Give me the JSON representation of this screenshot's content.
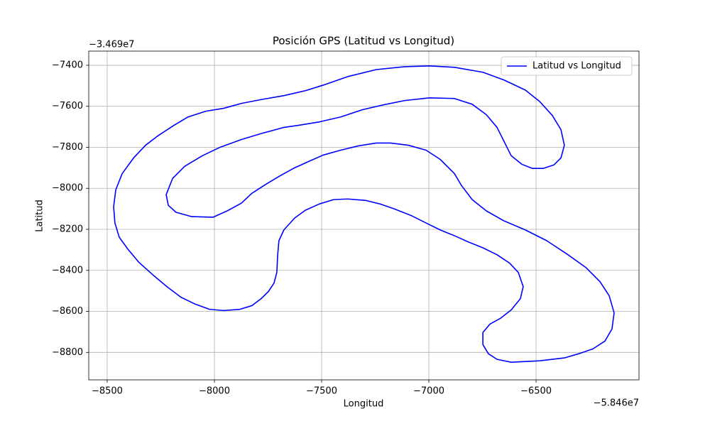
{
  "chart_data": {
    "type": "line",
    "title": "Posición GPS (Latitud vs Longitud)",
    "x_label": "Longitud",
    "y_label": "Latitud",
    "x_offset": "−5.846e7",
    "y_offset": "−3.469e7",
    "legend": "upper right",
    "grid": true,
    "xlim": [
      -8586,
      -6020
    ],
    "ylim": [
      -8934,
      -7331
    ],
    "xticks": [
      {
        "value": -8500,
        "label": "−8500"
      },
      {
        "value": -8000,
        "label": "−8000"
      },
      {
        "value": -7500,
        "label": "−7500"
      },
      {
        "value": -7000,
        "label": "−7000"
      },
      {
        "value": -6500,
        "label": "−6500"
      }
    ],
    "yticks": [
      {
        "value": -8800,
        "label": "−8800"
      },
      {
        "value": -8600,
        "label": "−8600"
      },
      {
        "value": -8400,
        "label": "−8400"
      },
      {
        "value": -8200,
        "label": "−8200"
      },
      {
        "value": -8000,
        "label": "−8000"
      },
      {
        "value": -7800,
        "label": "−7800"
      },
      {
        "value": -7600,
        "label": "−7600"
      },
      {
        "value": -7400,
        "label": "−7400"
      }
    ],
    "x": [
      -7957,
      -7874,
      -7775,
      -7676,
      -7576,
      -7493,
      -7378,
      -7245,
      -7113,
      -6997,
      -6881,
      -6748,
      -6649,
      -6550,
      -6484,
      -6424,
      -6384,
      -6368,
      -6384,
      -6417,
      -6467,
      -6517,
      -6566,
      -6616,
      -6649,
      -6682,
      -6732,
      -6798,
      -6881,
      -6997,
      -7113,
      -7212,
      -7311,
      -7411,
      -7510,
      -7609,
      -7676,
      -7775,
      -7874,
      -7974,
      -8056,
      -8139,
      -8195,
      -8225,
      -8215,
      -8179,
      -8106,
      -8007,
      -7940,
      -7874,
      -7825,
      -7758,
      -7692,
      -7626,
      -7560,
      -7493,
      -7411,
      -7328,
      -7245,
      -7179,
      -7096,
      -7013,
      -6947,
      -6881,
      -6848,
      -6798,
      -6732,
      -6649,
      -6550,
      -6451,
      -6351,
      -6268,
      -6202,
      -6159,
      -6136,
      -6146,
      -6179,
      -6235,
      -6302,
      -6368,
      -6484,
      -6616,
      -6682,
      -6722,
      -6748,
      -6748,
      -6715,
      -6666,
      -6616,
      -6573,
      -6560,
      -6583,
      -6623,
      -6682,
      -6748,
      -6815,
      -6881,
      -6947,
      -7013,
      -7080,
      -7162,
      -7229,
      -7295,
      -7378,
      -7444,
      -7510,
      -7576,
      -7626,
      -7676,
      -7699,
      -7705,
      -7709,
      -7722,
      -7748,
      -7782,
      -7825,
      -7881,
      -7957,
      -8023,
      -8089,
      -8156,
      -8222,
      -8288,
      -8354,
      -8404,
      -8444,
      -8464,
      -8470,
      -8460,
      -8430,
      -8377,
      -8321,
      -8265,
      -8189,
      -8123,
      -8040,
      -7957
    ],
    "series": [
      {
        "name": "Latitud vs Longitud",
        "color": "#0000ff",
        "values": [
          -7610,
          -7586,
          -7566,
          -7548,
          -7524,
          -7497,
          -7455,
          -7421,
          -7407,
          -7403,
          -7410,
          -7434,
          -7472,
          -7521,
          -7576,
          -7645,
          -7714,
          -7790,
          -7852,
          -7886,
          -7903,
          -7903,
          -7883,
          -7841,
          -7772,
          -7703,
          -7641,
          -7590,
          -7562,
          -7559,
          -7572,
          -7593,
          -7617,
          -7652,
          -7676,
          -7693,
          -7703,
          -7731,
          -7762,
          -7800,
          -7841,
          -7893,
          -7952,
          -8031,
          -8083,
          -8117,
          -8138,
          -8141,
          -8110,
          -8072,
          -8024,
          -7979,
          -7938,
          -7900,
          -7869,
          -7838,
          -7814,
          -7793,
          -7779,
          -7779,
          -7790,
          -7814,
          -7859,
          -7928,
          -7986,
          -8055,
          -8110,
          -8159,
          -8203,
          -8255,
          -8324,
          -8386,
          -8455,
          -8524,
          -8607,
          -8686,
          -8745,
          -8783,
          -8807,
          -8827,
          -8841,
          -8848,
          -8834,
          -8807,
          -8762,
          -8703,
          -8662,
          -8634,
          -8593,
          -8538,
          -8479,
          -8410,
          -8365,
          -8324,
          -8290,
          -8262,
          -8231,
          -8203,
          -8169,
          -8134,
          -8100,
          -8076,
          -8059,
          -8052,
          -8055,
          -8076,
          -8107,
          -8145,
          -8203,
          -8255,
          -8324,
          -8410,
          -8462,
          -8503,
          -8538,
          -8572,
          -8590,
          -8596,
          -8590,
          -8565,
          -8531,
          -8479,
          -8421,
          -8359,
          -8296,
          -8238,
          -8169,
          -8090,
          -8007,
          -7928,
          -7852,
          -7790,
          -7745,
          -7693,
          -7652,
          -7624,
          -7610
        ]
      }
    ]
  }
}
